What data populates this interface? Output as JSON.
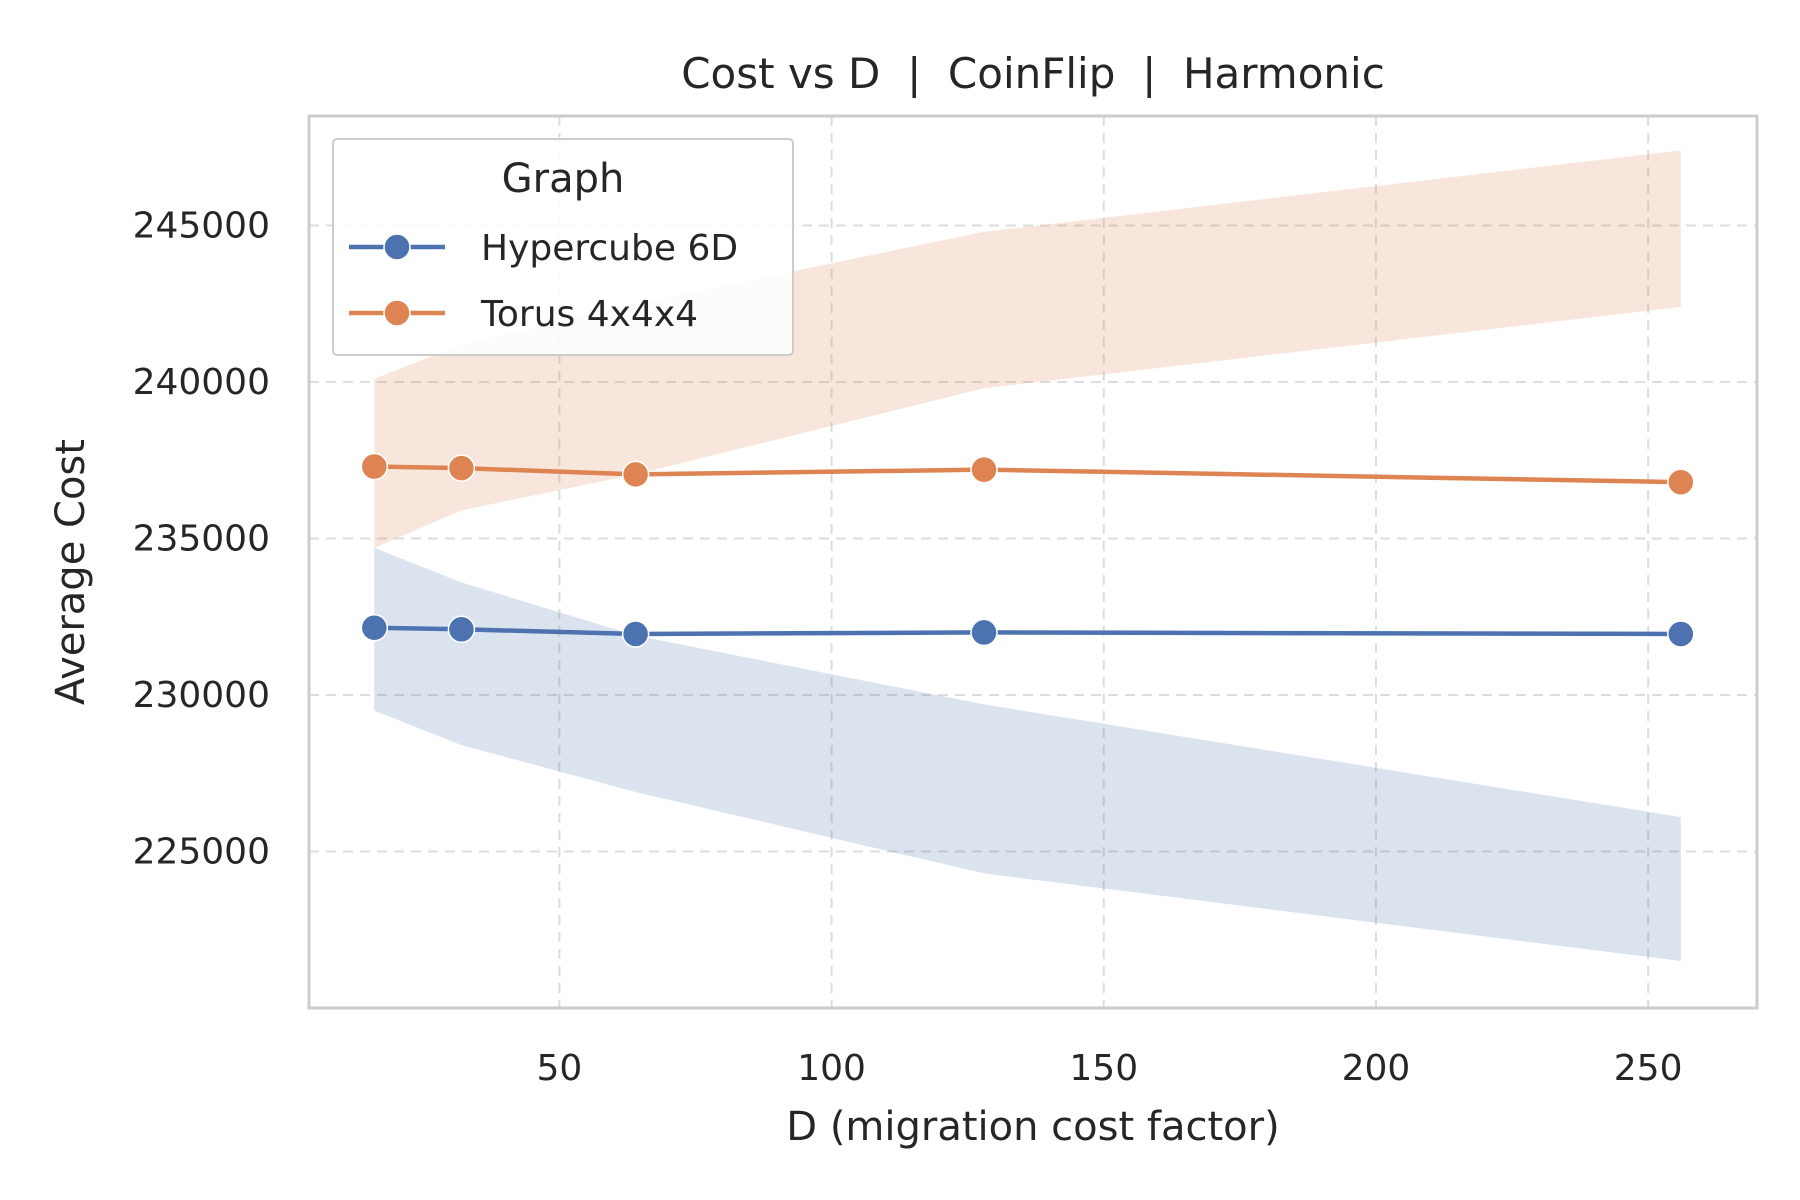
{
  "chart_data": {
    "type": "line",
    "title": "Cost vs D  |  CoinFlip  |  Harmonic",
    "xlabel": "D (migration cost factor)",
    "ylabel": "Average Cost",
    "xlim": [
      4,
      270
    ],
    "ylim": [
      220000,
      248500
    ],
    "xticks": [
      50,
      100,
      150,
      200,
      250
    ],
    "yticks": [
      225000,
      230000,
      235000,
      240000,
      245000
    ],
    "xtick_labels": [
      "50",
      "100",
      "150",
      "200",
      "250"
    ],
    "ytick_labels": [
      "225000",
      "230000",
      "235000",
      "240000",
      "245000"
    ],
    "grid": true,
    "legend": {
      "title": "Graph",
      "position": "top-left"
    },
    "x": [
      16,
      32,
      64,
      128,
      256
    ],
    "series": [
      {
        "name": "Hypercube 6D",
        "color": "#4c72b0",
        "values": [
          232150,
          232100,
          231950,
          232000,
          231950
        ],
        "band_lower": [
          229500,
          228400,
          226900,
          224300,
          221500
        ],
        "band_upper": [
          234700,
          233600,
          231900,
          229700,
          226100
        ]
      },
      {
        "name": "Torus 4x4x4",
        "color": "#dd8452",
        "values": [
          237300,
          237250,
          237050,
          237200,
          236800
        ],
        "band_lower": [
          234700,
          235900,
          237050,
          239800,
          242400
        ],
        "band_upper": [
          240100,
          241200,
          242500,
          244800,
          247400
        ]
      }
    ]
  }
}
